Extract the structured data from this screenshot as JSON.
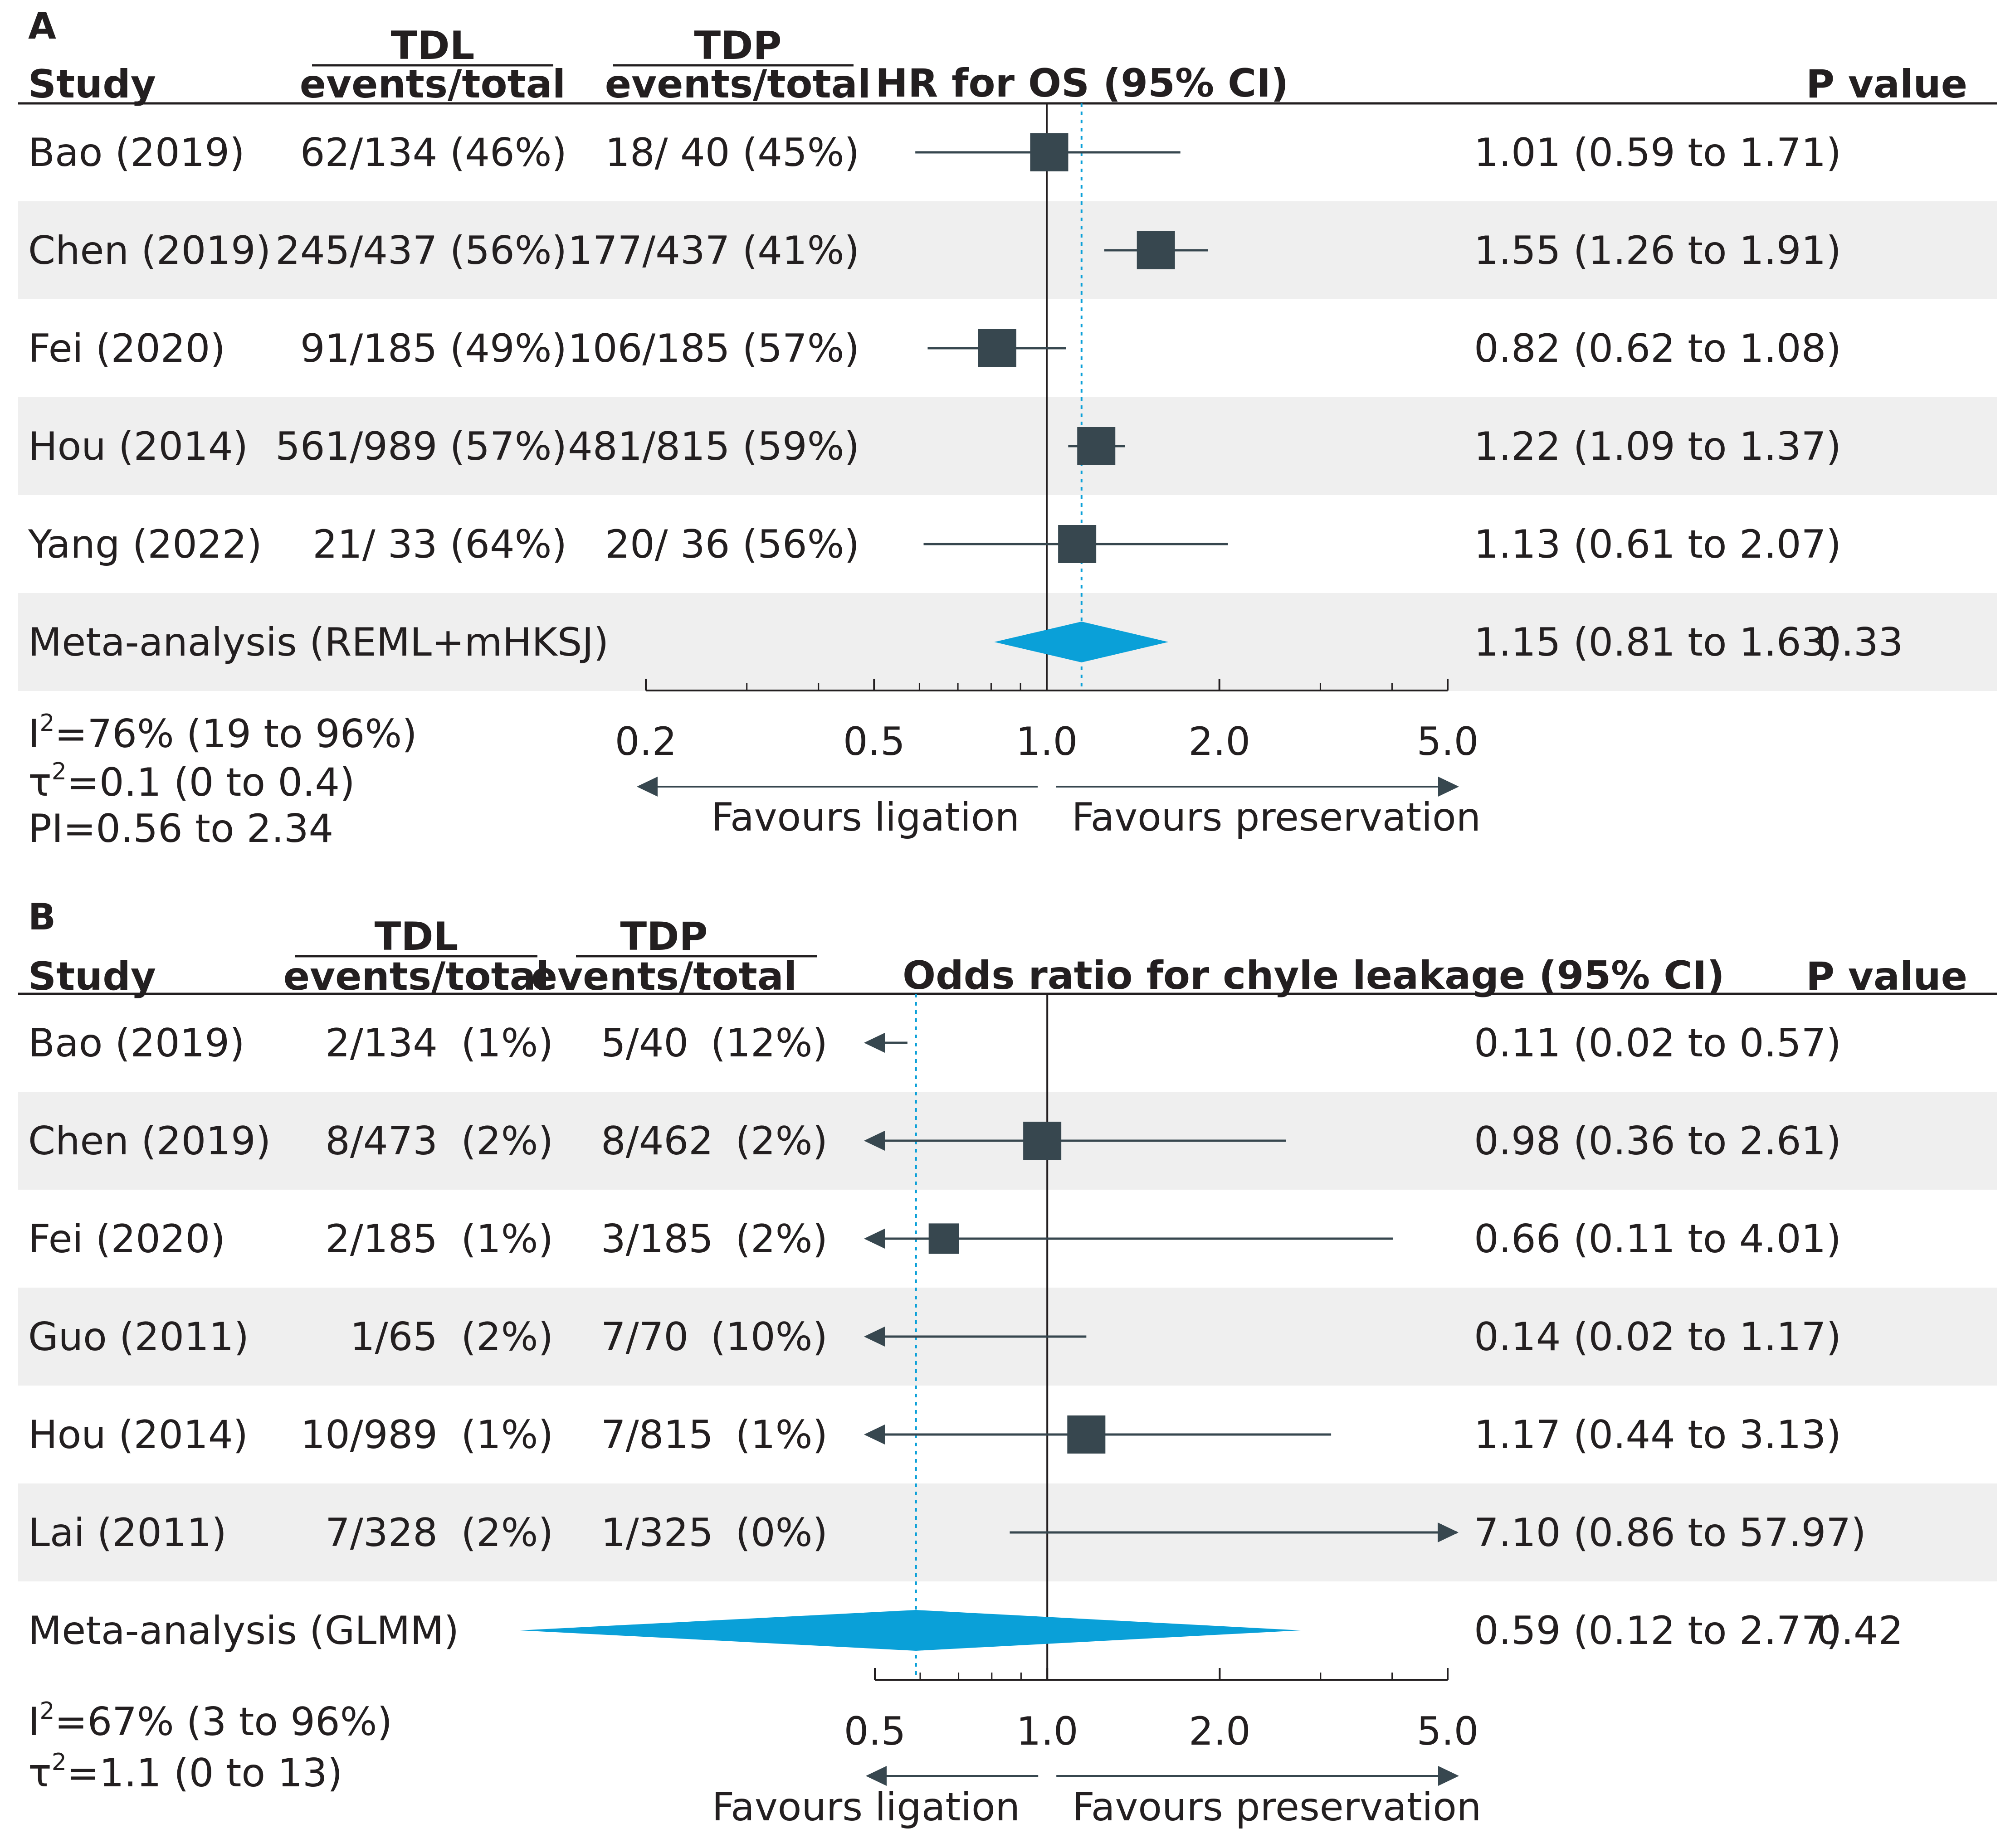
{
  "colors": {
    "text": "#231f20",
    "marker": "#37474f",
    "diamond": "#0aa0d8",
    "ref_dotted": "#0aa0d8",
    "shade": "#efefef"
  },
  "chart_data": [
    {
      "type": "forest",
      "panel_label": "A",
      "headers": {
        "study": "Study",
        "group1_title": "TDL",
        "group1_sub": "events/total",
        "group2_title": "TDP",
        "group2_sub": "events/total",
        "effect": "HR for OS (95% CI)",
        "pvalue": "P value"
      },
      "scale": "log",
      "xlim": [
        0.2,
        5.0
      ],
      "ticks": [
        0.2,
        0.5,
        1.0,
        2.0,
        5.0
      ],
      "tick_labels": [
        "0.2",
        "0.5",
        "1.0",
        "2.0",
        "5.0"
      ],
      "minor_ticks": [
        0.3,
        0.4,
        0.6,
        0.7,
        0.8,
        0.9,
        3,
        4
      ],
      "arrow_left_label": "Favours ligation",
      "arrow_right_label": "Favours preservation",
      "rows": [
        {
          "study": "Bao (2019)",
          "g1": "62/134 (46%)",
          "g2": "18/ 40 (45%)",
          "est": 1.01,
          "lo": 0.59,
          "hi": 1.71,
          "ci_text": "1.01 (0.59 to 1.71)",
          "weight": 1.0
        },
        {
          "study": "Chen (2019)",
          "g1": "245/437 (56%)",
          "g2": "177/437 (41%)",
          "est": 1.55,
          "lo": 1.26,
          "hi": 1.91,
          "ci_text": "1.55 (1.26 to 1.91)",
          "weight": 1.0
        },
        {
          "study": "Fei (2020)",
          "g1": "91/185 (49%)",
          "g2": "106/185 (57%)",
          "est": 0.82,
          "lo": 0.62,
          "hi": 1.08,
          "ci_text": "0.82 (0.62 to 1.08)",
          "weight": 1.0
        },
        {
          "study": "Hou (2014)",
          "g1": "561/989 (57%)",
          "g2": "481/815 (59%)",
          "est": 1.22,
          "lo": 1.09,
          "hi": 1.37,
          "ci_text": "1.22 (1.09 to 1.37)",
          "weight": 1.0
        },
        {
          "study": "Yang (2022)",
          "g1": "21/ 33 (64%)",
          "g2": "20/ 36 (56%)",
          "est": 1.13,
          "lo": 0.61,
          "hi": 2.07,
          "ci_text": "1.13 (0.61 to 2.07)",
          "weight": 1.0
        }
      ],
      "summary": {
        "label": "Meta-analysis (REML+mHKSJ)",
        "est": 1.15,
        "lo": 0.81,
        "hi": 1.63,
        "ci_text": "1.15 (0.81 to 1.63)",
        "p": "0.33"
      },
      "stats": [
        {
          "pre": "I",
          "sup": "2",
          "post": "=76% (19 to 96%)"
        },
        {
          "pre": "τ",
          "sup": "2",
          "post": "=0.1 (0 to 0.4)"
        },
        {
          "pre": "PI=0.56 to 2.34",
          "sup": "",
          "post": ""
        }
      ]
    },
    {
      "type": "forest",
      "panel_label": "B",
      "headers": {
        "study": "Study",
        "group1_title": "TDL",
        "group1_sub": "events/total",
        "group2_title": "TDP",
        "group2_sub": "events/total",
        "effect": "Odds ratio for chyle leakage (95% CI)",
        "pvalue": "P value"
      },
      "scale": "log",
      "xlim": [
        0.5,
        5.0
      ],
      "ticks": [
        0.5,
        1.0,
        2.0,
        5.0
      ],
      "tick_labels": [
        "0.5",
        "1.0",
        "2.0",
        "5.0"
      ],
      "minor_ticks": [
        0.6,
        0.7,
        0.8,
        0.9,
        3,
        4
      ],
      "arrow_left_label": "Favours ligation",
      "arrow_right_label": "Favours preservation",
      "rows": [
        {
          "study": "Bao (2019)",
          "g1n": "2/134",
          "g1p": "(1%)",
          "g2n": "5/40",
          "g2p": "(12%)",
          "est": 0.11,
          "lo": 0.02,
          "hi": 0.57,
          "ci_text": "0.11 (0.02 to 0.57)",
          "weight": 0
        },
        {
          "study": "Chen (2019)",
          "g1n": "8/473",
          "g1p": "(2%)",
          "g2n": "8/462",
          "g2p": "(2%)",
          "est": 0.98,
          "lo": 0.36,
          "hi": 2.61,
          "ci_text": "0.98 (0.36 to 2.61)",
          "weight": 1.0
        },
        {
          "study": "Fei (2020)",
          "g1n": "2/185",
          "g1p": "(1%)",
          "g2n": "3/185",
          "g2p": "(2%)",
          "est": 0.66,
          "lo": 0.11,
          "hi": 4.01,
          "ci_text": "0.66 (0.11 to 4.01)",
          "weight": 0.8
        },
        {
          "study": "Guo (2011)",
          "g1n": "1/65",
          "g1p": "(2%)",
          "g2n": "7/70",
          "g2p": "(10%)",
          "est": 0.14,
          "lo": 0.02,
          "hi": 1.17,
          "ci_text": "0.14 (0.02 to 1.17)",
          "weight": 0
        },
        {
          "study": "Hou (2014)",
          "g1n": "10/989",
          "g1p": "(1%)",
          "g2n": "7/815",
          "g2p": "(1%)",
          "est": 1.17,
          "lo": 0.44,
          "hi": 3.13,
          "ci_text": "1.17 (0.44 to 3.13)",
          "weight": 1.0
        },
        {
          "study": "Lai (2011)",
          "g1n": "7/328",
          "g1p": "(2%)",
          "g2n": "1/325",
          "g2p": "(0%)",
          "est": 7.1,
          "lo": 0.86,
          "hi": 57.97,
          "ci_text": "7.10 (0.86 to 57.97)",
          "weight": 0
        }
      ],
      "summary": {
        "label": "Meta-analysis (GLMM)",
        "est": 0.59,
        "lo": 0.12,
        "hi": 2.77,
        "ci_text": "0.59 (0.12 to 2.77)",
        "p": "0.42"
      },
      "stats": [
        {
          "pre": "I",
          "sup": "2",
          "post": "=67% (3 to 96%)"
        },
        {
          "pre": "τ",
          "sup": "2",
          "post": "=1.1 (0 to 13)"
        }
      ]
    }
  ]
}
